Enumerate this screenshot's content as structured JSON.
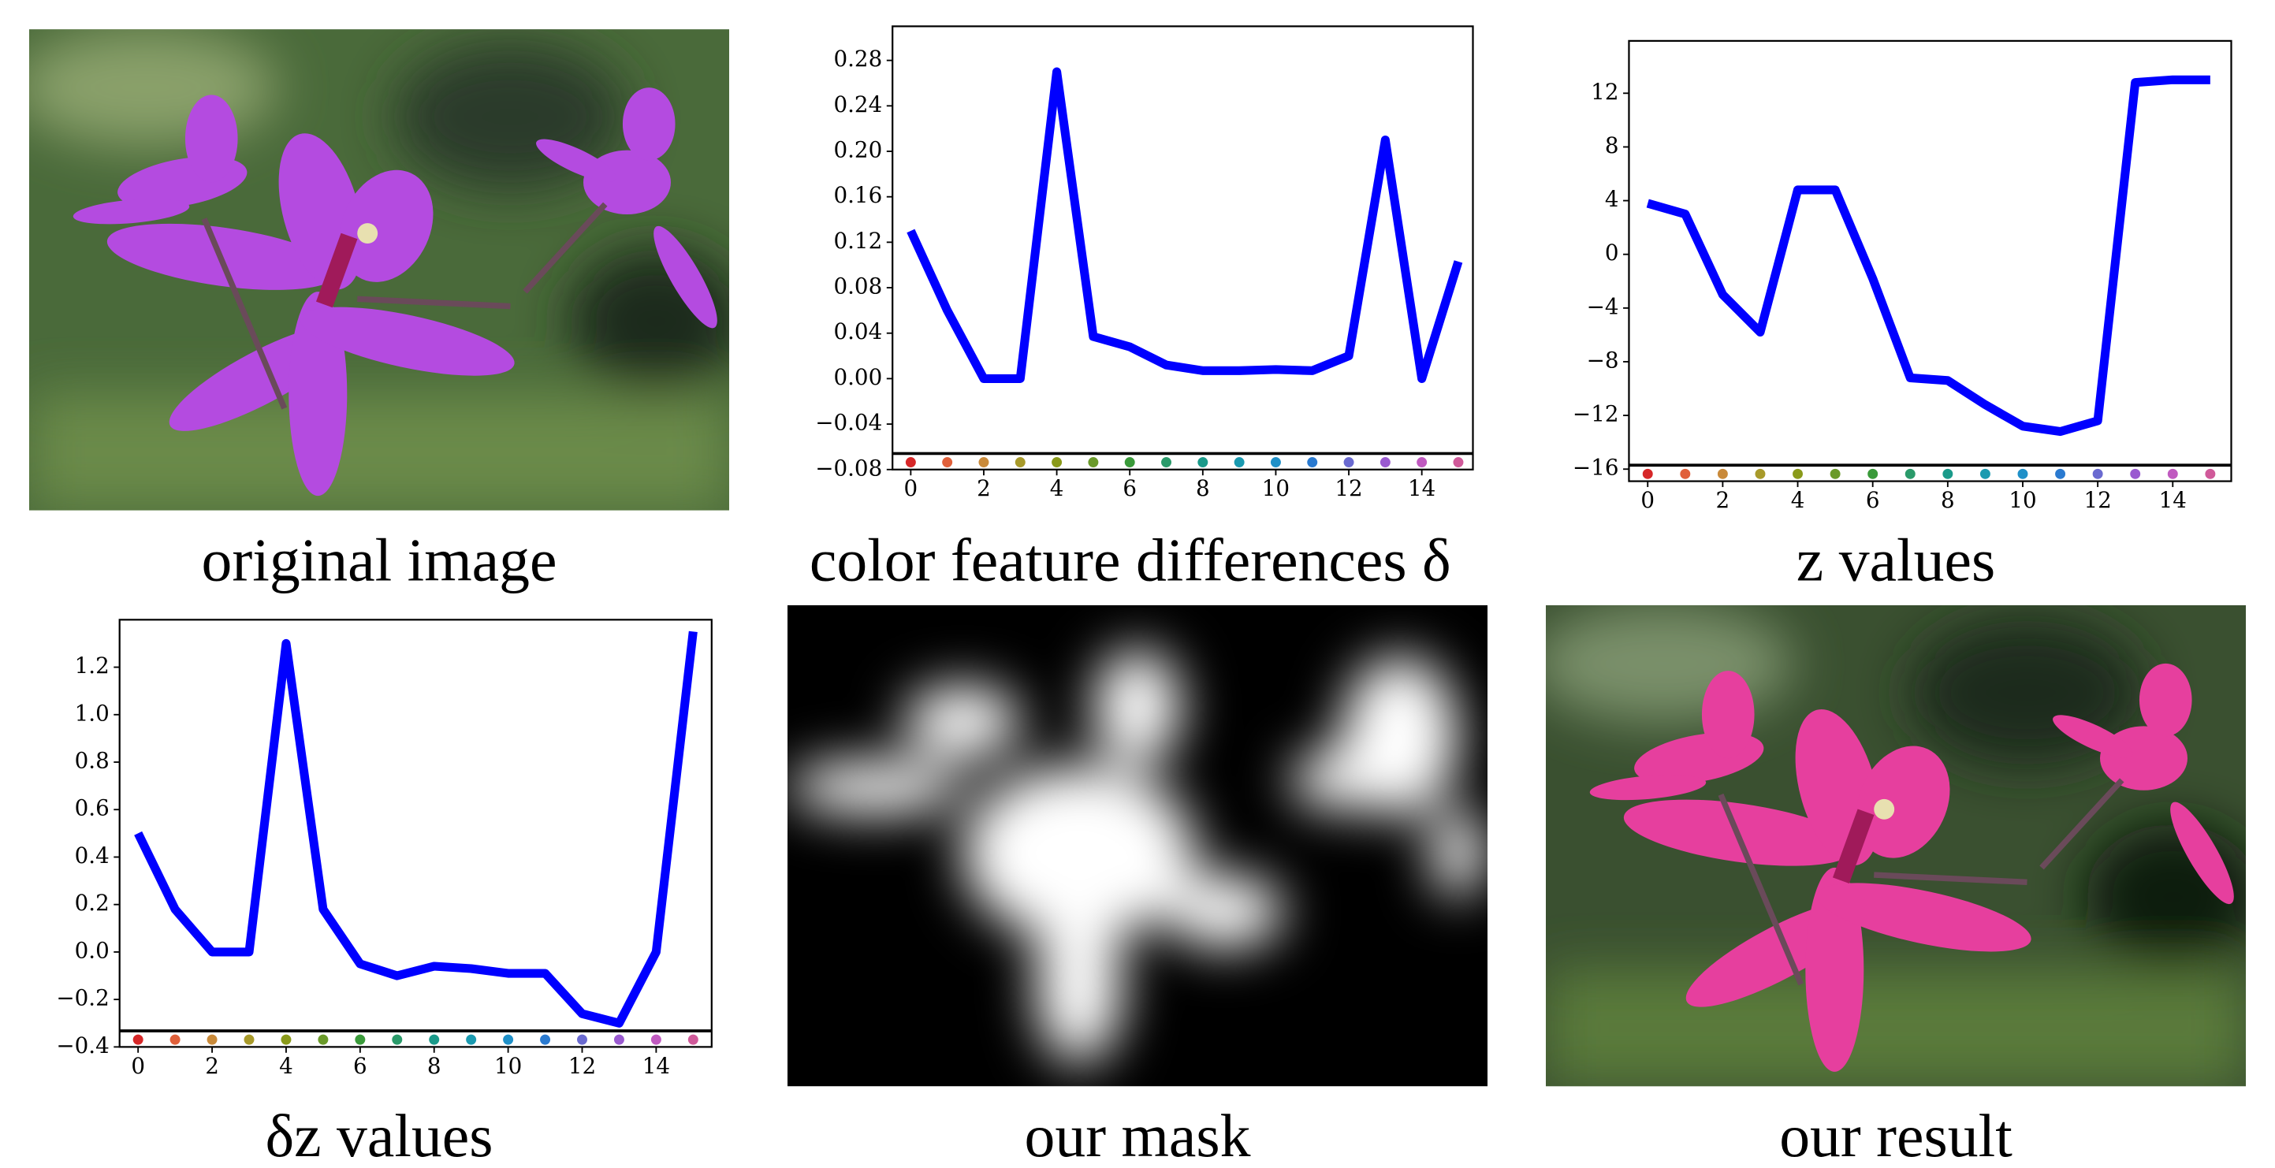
{
  "chart_data": [
    {
      "type": "line",
      "caption": "color feature differences δ",
      "color": "#0000ff",
      "x": [
        0,
        1,
        2,
        3,
        4,
        5,
        6,
        7,
        8,
        9,
        10,
        11,
        12,
        13,
        14,
        15
      ],
      "values": [
        0.13,
        0.06,
        0.0,
        0.0,
        0.27,
        0.037,
        0.028,
        0.012,
        0.007,
        0.007,
        0.008,
        0.007,
        0.02,
        0.21,
        0.0,
        0.103
      ],
      "xlim": [
        -0.5,
        15.4
      ],
      "xticks": [
        0,
        2,
        4,
        6,
        8,
        10,
        12,
        14
      ],
      "ylim": [
        -0.08,
        0.31
      ],
      "yticks": [
        {
          "value": -0.08,
          "label": "−0.08"
        },
        {
          "value": -0.04,
          "label": "−0.04"
        },
        {
          "value": 0,
          "label": "0.00"
        },
        0.04,
        0.08,
        0.12,
        0.16,
        {
          "value": 0.2,
          "label": "0.20"
        },
        0.24,
        0.28
      ]
    },
    {
      "type": "line",
      "caption": "z values",
      "color": "#0000ff",
      "x": [
        0,
        1,
        2,
        3,
        4,
        5,
        6,
        7,
        8,
        9,
        10,
        11,
        12,
        13,
        14,
        15
      ],
      "values": [
        3.8,
        3,
        -3,
        -5.8,
        4.8,
        4.8,
        -1.8,
        -9.2,
        -9.4,
        -11.2,
        -12.8,
        -13.2,
        -12.4,
        12.8,
        13,
        13
      ],
      "xlim": [
        -0.5,
        15.56
      ],
      "xticks": [
        0,
        2,
        4,
        6,
        8,
        10,
        12,
        14
      ],
      "ylim": [
        -16.9,
        15.9
      ],
      "yticks": [
        {
          "value": -16,
          "label": "−16"
        },
        {
          "value": -12,
          "label": "−12"
        },
        {
          "value": -8,
          "label": "−8"
        },
        {
          "value": -4,
          "label": "−4"
        },
        0,
        4,
        8,
        12
      ]
    },
    {
      "type": "line",
      "caption": "δz values",
      "color": "#0000ff",
      "x": [
        0,
        1,
        2,
        3,
        4,
        5,
        6,
        7,
        8,
        9,
        10,
        11,
        12,
        13,
        14,
        15
      ],
      "values": [
        0.5,
        0.18,
        0.0,
        0.0,
        1.3,
        0.18,
        -0.05,
        -0.1,
        -0.06,
        -0.07,
        -0.09,
        -0.09,
        -0.26,
        -0.3,
        0.0,
        1.35
      ],
      "xlim": [
        -0.5,
        15.5
      ],
      "xticks": [
        0,
        2,
        4,
        6,
        8,
        10,
        12,
        14
      ],
      "ylim": [
        -0.4,
        1.4
      ],
      "yticks": [
        {
          "value": -0.4,
          "label": "−0.4"
        },
        {
          "value": -0.2,
          "label": "−0.2"
        },
        {
          "value": 0,
          "label": "0.0"
        },
        0.2,
        0.4,
        0.6,
        0.8,
        {
          "value": 1,
          "label": "1.0"
        },
        1.2
      ]
    }
  ],
  "marker_colors": [
    "#d62728",
    "#e0603a",
    "#c98a3a",
    "#a89a2a",
    "#8a9a1a",
    "#6a9a2a",
    "#3a9a3a",
    "#2a9a6a",
    "#1a9a8a",
    "#1a9ab0",
    "#1f90c8",
    "#2a7ad0",
    "#6a6ad0",
    "#9a5ad0",
    "#c05ac0",
    "#d05a9a"
  ],
  "images": [
    {
      "caption": "original image"
    },
    {
      "caption": "our mask"
    },
    {
      "caption": "our result"
    }
  ]
}
